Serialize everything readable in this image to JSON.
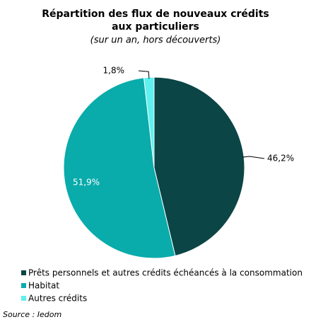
{
  "chart_data": {
    "type": "pie",
    "title": [
      "Répartition des flux de nouveaux crédits",
      "aux particuliers"
    ],
    "subtitle": "(sur un an, hors découverts)",
    "categories": [
      "Prêts personnels et autres crédits échéancés à la consommation",
      "Habitat",
      "Autres crédits"
    ],
    "values": [
      46.2,
      51.9,
      1.8
    ],
    "value_labels": [
      "46,2%",
      "51,9%",
      "1,8%"
    ],
    "colors": [
      "#0b4545",
      "#0aabab",
      "#5ff0f0"
    ],
    "source": "Source :  Iedom"
  }
}
